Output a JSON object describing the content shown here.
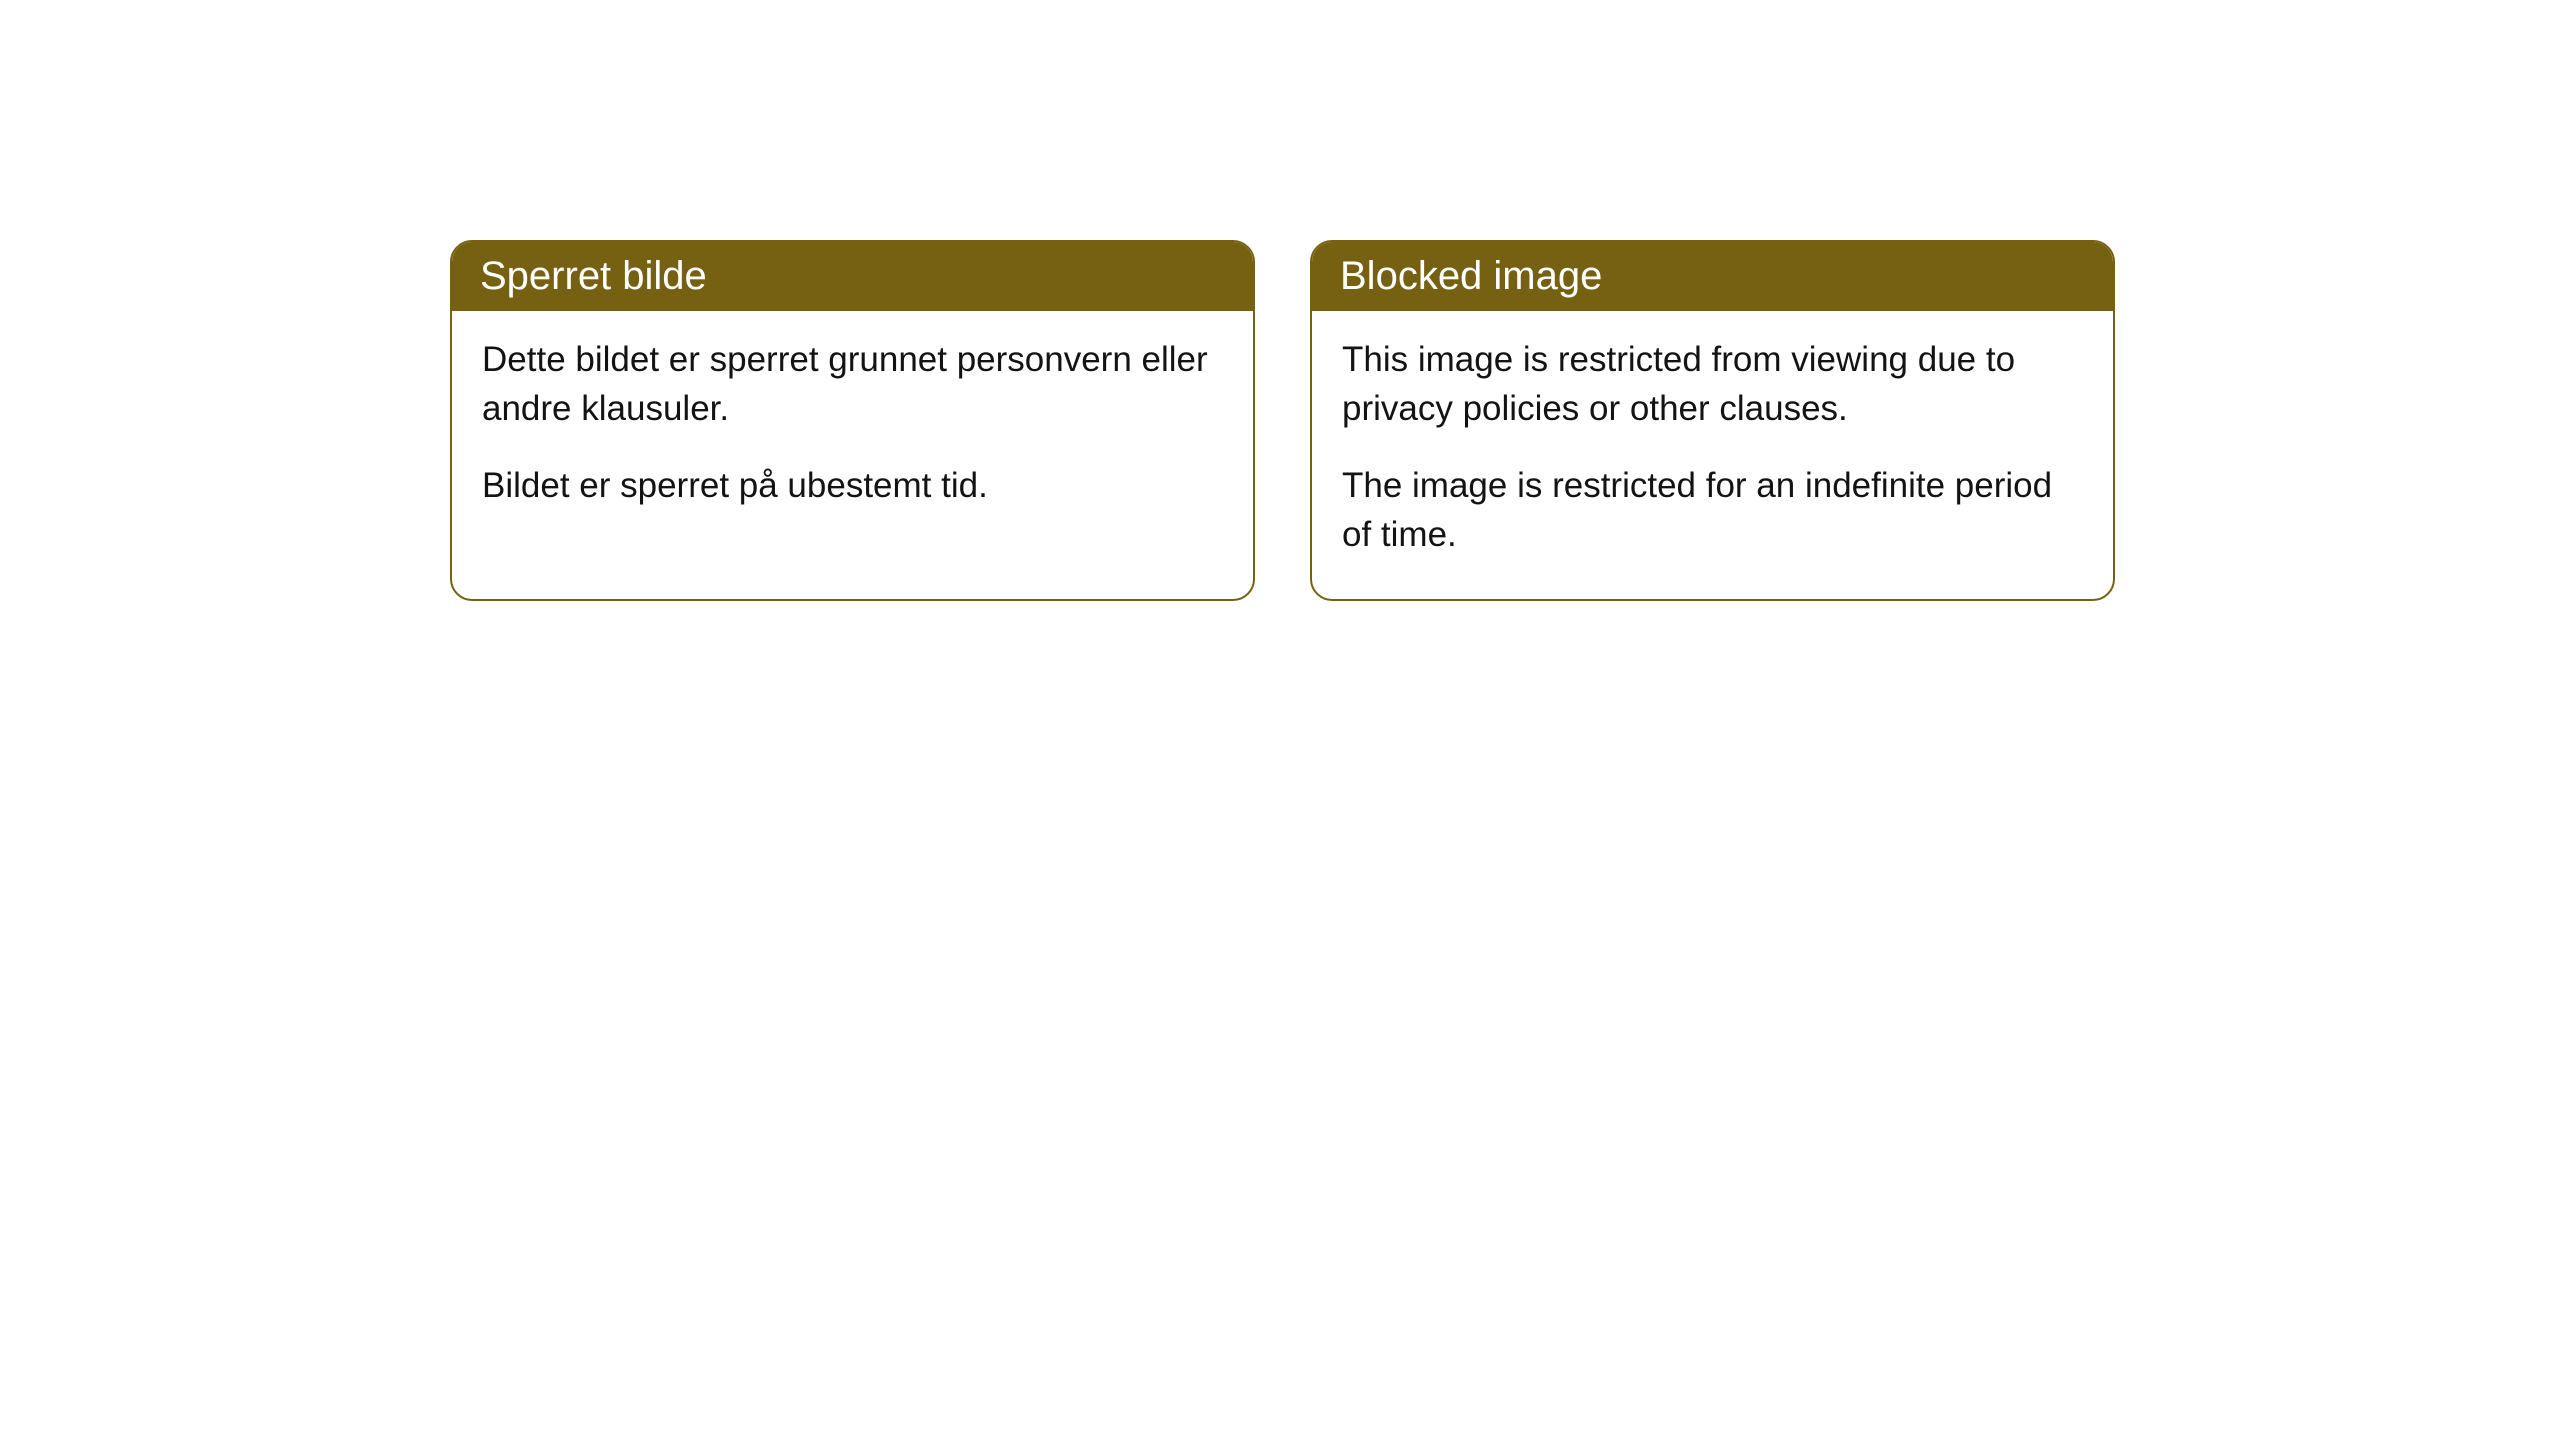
{
  "cards": [
    {
      "title": "Sperret bilde",
      "paragraph1": "Dette bildet er sperret grunnet personvern eller andre klausuler.",
      "paragraph2": "Bildet er sperret på ubestemt tid."
    },
    {
      "title": "Blocked image",
      "paragraph1": "This image is restricted from viewing due to privacy policies or other clauses.",
      "paragraph2": "The image is restricted for an indefinite period of time."
    }
  ],
  "style": {
    "header_background": "#766113",
    "header_text_color": "#ffffff",
    "border_color": "#766113",
    "body_text_color": "#131313",
    "card_background": "#ffffff",
    "page_background": "#ffffff",
    "border_radius": 22,
    "title_fontsize": 40,
    "body_fontsize": 35
  }
}
